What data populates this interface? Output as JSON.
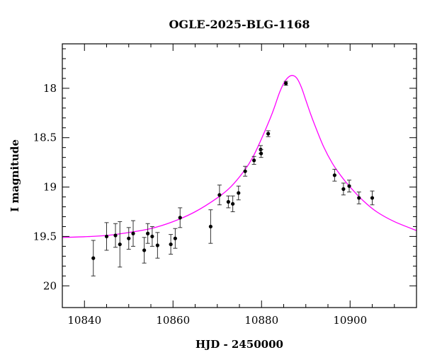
{
  "chart_data": {
    "type": "scatter",
    "title": "OGLE-2025-BLG-1168",
    "xlabel": "HJD - 2450000",
    "ylabel": "I magnitude",
    "xlim": [
      10835,
      10915
    ],
    "ylim": [
      20.22,
      17.55
    ],
    "y_inverted": true,
    "grid": false,
    "legend": "none",
    "xticks": [
      10840,
      10860,
      10880,
      10900
    ],
    "xtick_labels": [
      "10840",
      "10860",
      "10880",
      "10900"
    ],
    "yticks": [
      18,
      18.5,
      19,
      19.5,
      20
    ],
    "ytick_labels": [
      "18",
      "18.5",
      "19",
      "19.5",
      "20"
    ],
    "colors": {
      "model": "#ff00ff",
      "points": "#000000",
      "errorbars": "#333333"
    },
    "series": [
      {
        "kind": "points_with_errorbars",
        "points": [
          {
            "x": 10842.0,
            "y": 19.72,
            "err": 0.18
          },
          {
            "x": 10845.0,
            "y": 19.5,
            "err": 0.14
          },
          {
            "x": 10847.0,
            "y": 19.49,
            "err": 0.12
          },
          {
            "x": 10848.0,
            "y": 19.58,
            "err": 0.23
          },
          {
            "x": 10850.0,
            "y": 19.52,
            "err": 0.11
          },
          {
            "x": 10851.0,
            "y": 19.47,
            "err": 0.13
          },
          {
            "x": 10853.5,
            "y": 19.64,
            "err": 0.13
          },
          {
            "x": 10854.3,
            "y": 19.47,
            "err": 0.1
          },
          {
            "x": 10855.3,
            "y": 19.5,
            "err": 0.1
          },
          {
            "x": 10856.5,
            "y": 19.59,
            "err": 0.13
          },
          {
            "x": 10859.5,
            "y": 19.58,
            "err": 0.1
          },
          {
            "x": 10860.5,
            "y": 19.52,
            "err": 0.1
          },
          {
            "x": 10861.6,
            "y": 19.31,
            "err": 0.1
          },
          {
            "x": 10868.5,
            "y": 19.4,
            "err": 0.17
          },
          {
            "x": 10870.5,
            "y": 19.08,
            "err": 0.1
          },
          {
            "x": 10872.5,
            "y": 19.15,
            "err": 0.06
          },
          {
            "x": 10873.5,
            "y": 19.17,
            "err": 0.08
          },
          {
            "x": 10874.8,
            "y": 19.06,
            "err": 0.07
          },
          {
            "x": 10876.3,
            "y": 18.84,
            "err": 0.05
          },
          {
            "x": 10878.3,
            "y": 18.73,
            "err": 0.04
          },
          {
            "x": 10879.8,
            "y": 18.62,
            "err": 0.04
          },
          {
            "x": 10879.9,
            "y": 18.66,
            "err": 0.04
          },
          {
            "x": 10881.5,
            "y": 18.46,
            "err": 0.03
          },
          {
            "x": 10885.5,
            "y": 17.95,
            "err": 0.02
          },
          {
            "x": 10896.5,
            "y": 18.88,
            "err": 0.06
          },
          {
            "x": 10898.5,
            "y": 19.02,
            "err": 0.06
          },
          {
            "x": 10899.8,
            "y": 18.99,
            "err": 0.06
          },
          {
            "x": 10902.0,
            "y": 19.11,
            "err": 0.06
          },
          {
            "x": 10905.0,
            "y": 19.11,
            "err": 0.07
          }
        ]
      },
      {
        "kind": "model_curve",
        "points": [
          {
            "x": 10835,
            "y": 19.51
          },
          {
            "x": 10840,
            "y": 19.503
          },
          {
            "x": 10845,
            "y": 19.49
          },
          {
            "x": 10850,
            "y": 19.46
          },
          {
            "x": 10855,
            "y": 19.42
          },
          {
            "x": 10860,
            "y": 19.35
          },
          {
            "x": 10865,
            "y": 19.25
          },
          {
            "x": 10870,
            "y": 19.11
          },
          {
            "x": 10873,
            "y": 19.0
          },
          {
            "x": 10876,
            "y": 18.84
          },
          {
            "x": 10878,
            "y": 18.7
          },
          {
            "x": 10880,
            "y": 18.51
          },
          {
            "x": 10882,
            "y": 18.3
          },
          {
            "x": 10883,
            "y": 18.18
          },
          {
            "x": 10884,
            "y": 18.05
          },
          {
            "x": 10885,
            "y": 17.95
          },
          {
            "x": 10886,
            "y": 17.89
          },
          {
            "x": 10887,
            "y": 17.87
          },
          {
            "x": 10888,
            "y": 17.9
          },
          {
            "x": 10889,
            "y": 17.99
          },
          {
            "x": 10890,
            "y": 18.12
          },
          {
            "x": 10891,
            "y": 18.25
          },
          {
            "x": 10892,
            "y": 18.37
          },
          {
            "x": 10894,
            "y": 18.59
          },
          {
            "x": 10896,
            "y": 18.76
          },
          {
            "x": 10898,
            "y": 18.89
          },
          {
            "x": 10900,
            "y": 19.0
          },
          {
            "x": 10903,
            "y": 19.14
          },
          {
            "x": 10906,
            "y": 19.25
          },
          {
            "x": 10910,
            "y": 19.35
          },
          {
            "x": 10915,
            "y": 19.44
          }
        ]
      }
    ]
  }
}
